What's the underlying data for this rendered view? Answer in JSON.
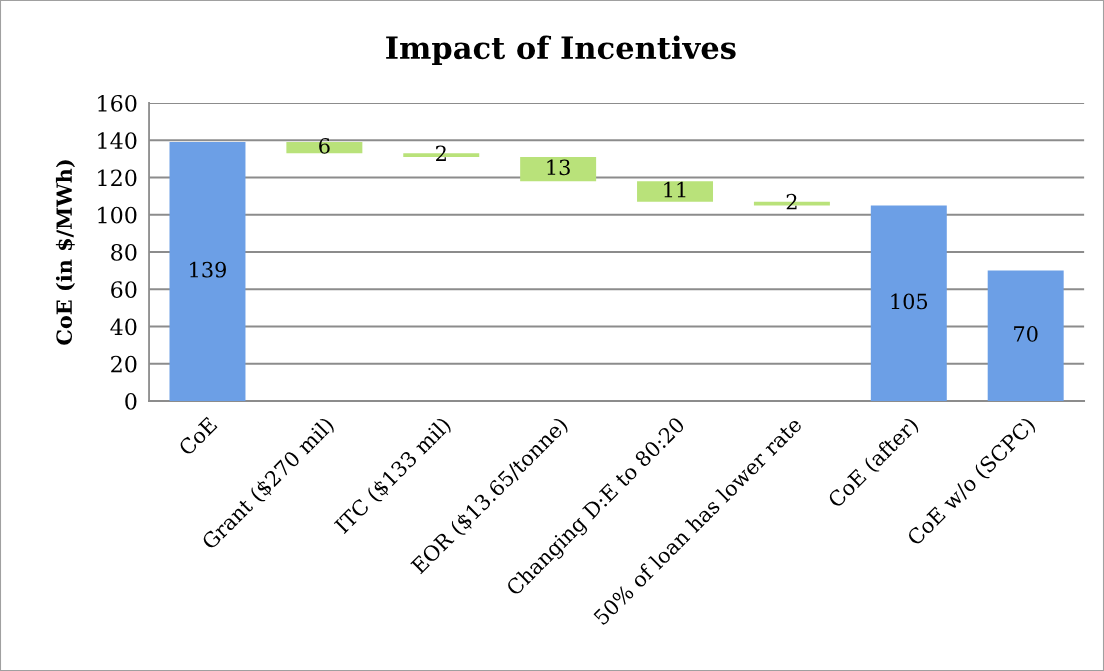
{
  "chart_data": {
    "type": "bar",
    "title": "Impact of Incentives",
    "ylabel": "CoE (in $/MWh)",
    "categories": [
      "CoE",
      "Grant ($270 mil)",
      "ITC ($133 mil)",
      "EOR ($13.65/tonne)",
      "Changing D:E to 80:20",
      "50% of loan has lower rate",
      "CoE (after)",
      "CoE w/o (SCPC)"
    ],
    "values": [
      139,
      6,
      2,
      13,
      11,
      2,
      105,
      70
    ],
    "base": [
      0,
      133,
      131,
      118,
      107,
      105,
      0,
      0
    ],
    "colors": [
      "#6c9fe6",
      "#b9e27a",
      "#b9e27a",
      "#b9e27a",
      "#b9e27a",
      "#b9e27a",
      "#6c9fe6",
      "#6c9fe6"
    ],
    "ylim": [
      0,
      160
    ],
    "yticks": [
      0,
      20,
      40,
      60,
      80,
      100,
      120,
      140,
      160
    ],
    "grid": "y",
    "data_labels": true
  }
}
